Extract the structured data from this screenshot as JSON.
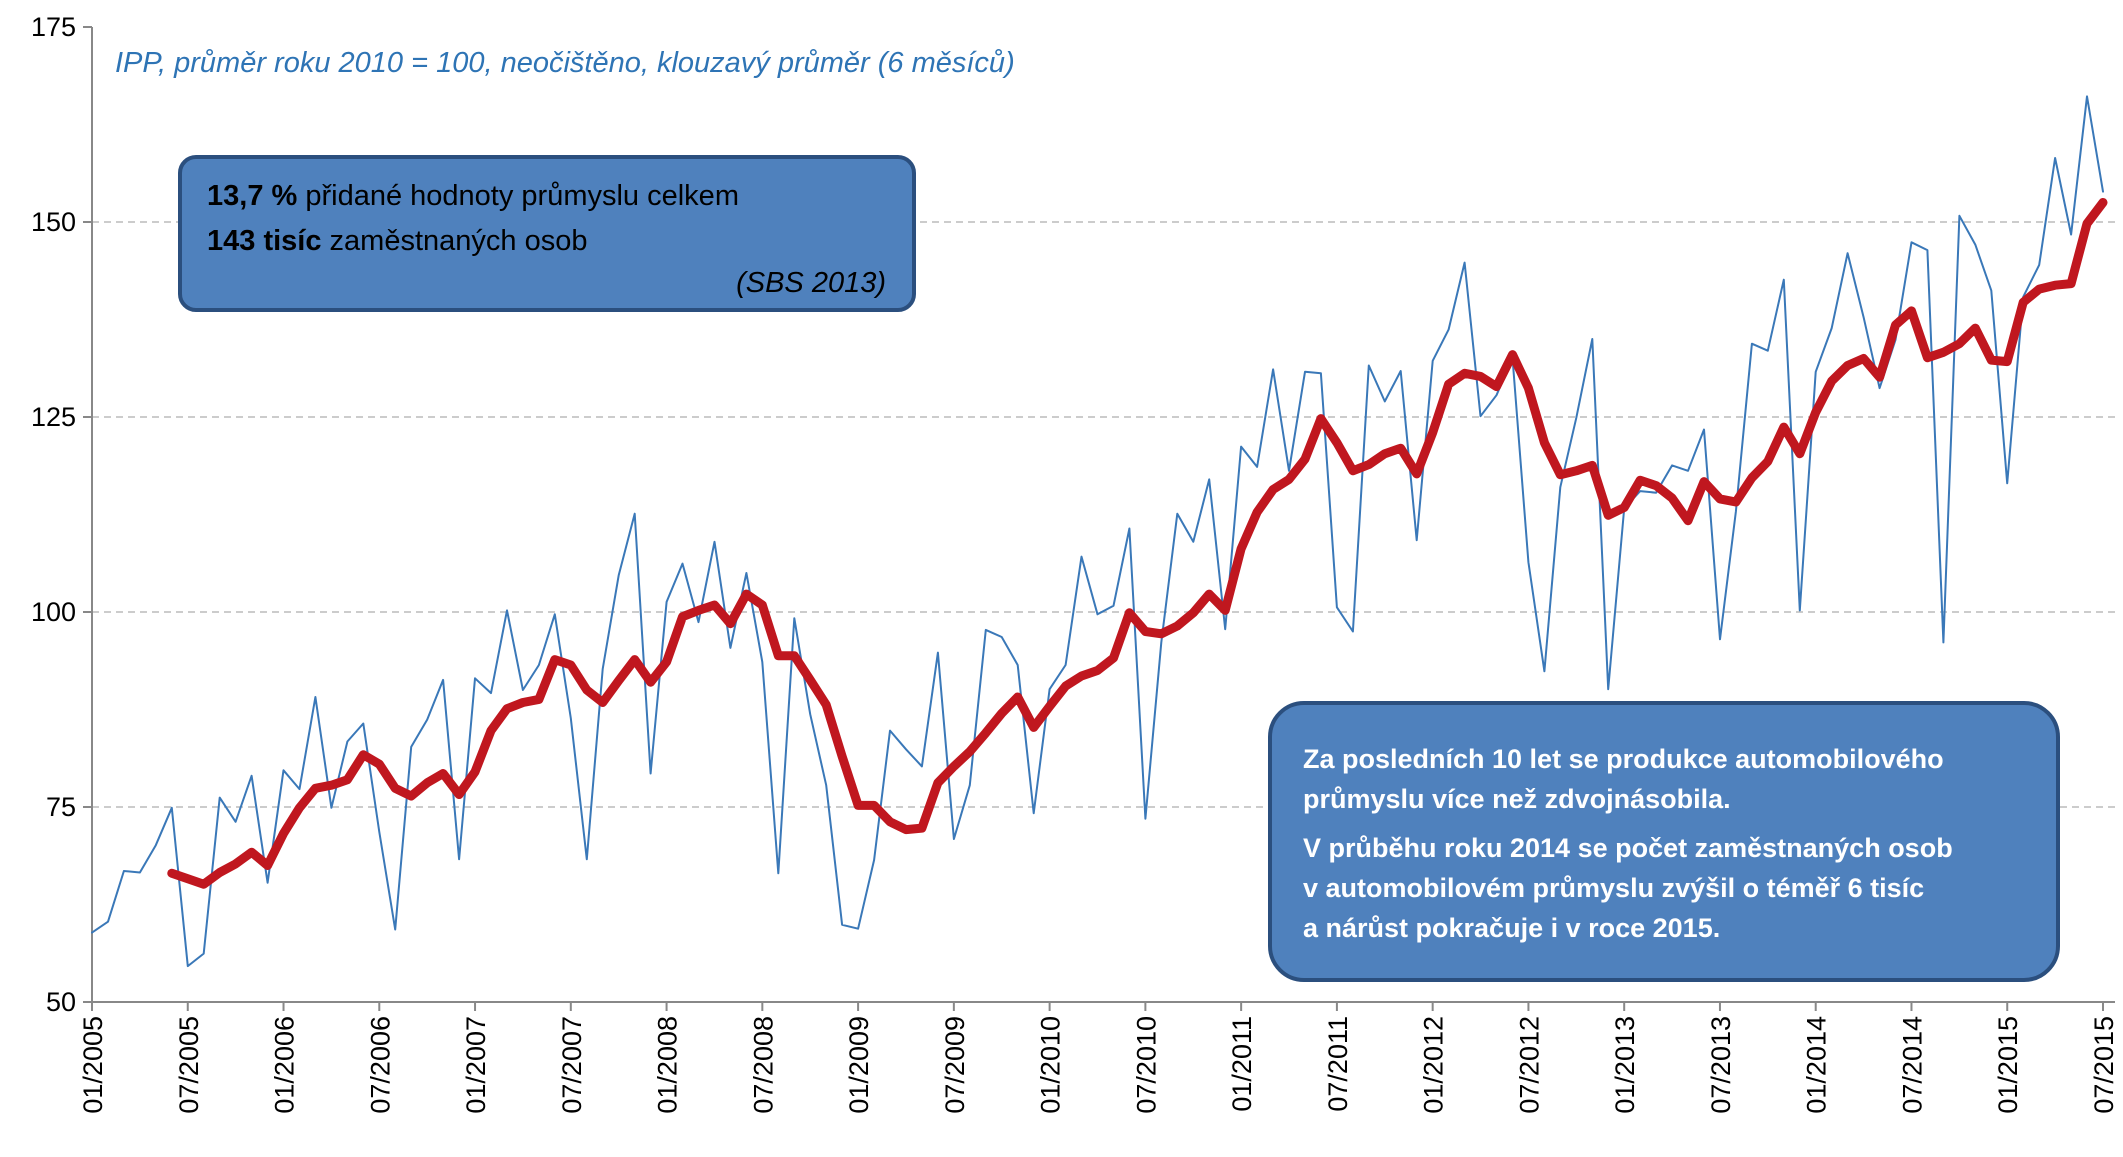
{
  "chart_data": {
    "type": "line",
    "subtitle": "IPP, průměr roku 2010 = 100, neočištěno, klouzavý průměr (6 měsíců)",
    "categories": [
      "01/2005",
      null,
      null,
      null,
      null,
      null,
      "07/2005",
      null,
      null,
      null,
      null,
      null,
      "01/2006",
      null,
      null,
      null,
      null,
      null,
      "07/2006",
      null,
      null,
      null,
      null,
      null,
      "01/2007",
      null,
      null,
      null,
      null,
      null,
      "07/2007",
      null,
      null,
      null,
      null,
      null,
      "01/2008",
      null,
      null,
      null,
      null,
      null,
      "07/2008",
      null,
      null,
      null,
      null,
      null,
      "01/2009",
      null,
      null,
      null,
      null,
      null,
      "07/2009",
      null,
      null,
      null,
      null,
      null,
      "01/2010",
      null,
      null,
      null,
      null,
      null,
      "07/2010",
      null,
      null,
      null,
      null,
      null,
      "01/2011",
      null,
      null,
      null,
      null,
      null,
      "07/2011",
      null,
      null,
      null,
      null,
      null,
      "01/2012",
      null,
      null,
      null,
      null,
      null,
      "07/2012",
      null,
      null,
      null,
      null,
      null,
      "01/2013",
      null,
      null,
      null,
      null,
      null,
      "07/2013",
      null,
      null,
      null,
      null,
      null,
      "01/2014",
      null,
      null,
      null,
      null,
      null,
      "07/2014",
      null,
      null,
      null,
      null,
      null,
      "01/2015",
      null,
      null,
      null,
      null,
      null,
      "07/2015"
    ],
    "series": [
      {
        "color": "#3a78b8",
        "values": [
          58.9,
          60.3,
          66.8,
          66.6,
          70.1,
          74.9,
          54.6,
          56.2,
          76.2,
          73.1,
          79,
          65.3,
          79.7,
          77.3,
          89.1,
          74.9,
          83.4,
          85.7,
          71.8,
          59.3,
          82.7,
          86.2,
          91.3,
          68.3,
          91.5,
          89.6,
          100.2,
          90,
          93.2,
          99.7,
          86.4,
          68.3,
          92.7,
          104.7,
          112.6,
          79.3,
          101.3,
          106.2,
          98.7,
          109,
          95.4,
          105,
          93.6,
          66.5,
          99.2,
          86.9,
          77.8,
          59.9,
          59.4,
          68.2,
          84.8,
          82.4,
          80.2,
          94.8,
          70.9,
          77.8,
          97.7,
          96.8,
          93.2,
          74.2,
          90.1,
          93.2,
          107.1,
          99.7,
          100.8,
          110.7,
          73.5,
          96.1,
          112.6,
          109,
          117,
          97.8,
          121.2,
          118.6,
          131.1,
          118.1,
          130.8,
          130.6,
          100.6,
          97.5,
          131.6,
          127,
          130.9,
          109.2,
          132.2,
          136.2,
          144.8,
          125.1,
          127.8,
          132.6,
          106.4,
          92.4,
          116,
          124.9,
          135,
          90.1,
          113.3,
          115.5,
          115.3,
          118.8,
          118.1,
          123.4,
          96.5,
          112.9,
          134.4,
          133.5,
          142.6,
          100.2,
          130.8,
          136.4,
          146,
          137.8,
          128.7,
          134.9,
          147.4,
          146.4,
          96.1,
          150.8,
          147.1,
          141.2,
          116.5,
          140.4,
          144.5,
          158.2,
          148.4,
          166.1,
          153.9
        ]
      },
      {
        "color": "#c0171f",
        "values": [
          null,
          null,
          null,
          null,
          null,
          66.5,
          65.8,
          65.1,
          66.6,
          67.7,
          69.2,
          67.5,
          71.6,
          74.9,
          77.4,
          77.8,
          78.5,
          81.7,
          80.5,
          77.4,
          76.4,
          78.1,
          79.3,
          76.6,
          79.5,
          84.8,
          87.6,
          88.4,
          88.8,
          93.9,
          93.2,
          90,
          88.4,
          91.2,
          93.9,
          91,
          93.6,
          99.4,
          100.2,
          100.9,
          98.5,
          102.3,
          100.9,
          94.4,
          94.4,
          91.3,
          88.1,
          81.5,
          75.2,
          75.2,
          73.1,
          72.1,
          72.3,
          78.1,
          80.2,
          82.1,
          84.5,
          87,
          89.1,
          85.2,
          87.9,
          90.5,
          91.8,
          92.5,
          94.1,
          99.9,
          97.5,
          97.2,
          98.2,
          99.9,
          102.3,
          100.2,
          108.1,
          112.8,
          115.7,
          117,
          119.6,
          124.8,
          121.7,
          118.1,
          118.9,
          120.3,
          121,
          117.7,
          123,
          129.2,
          130.6,
          130.2,
          128.9,
          133,
          128.7,
          121.7,
          117.6,
          118.1,
          118.8,
          112.4,
          113.4,
          116.9,
          116.2,
          114.6,
          111.7,
          116.7,
          114.5,
          114.1,
          117.2,
          119.3,
          123.7,
          120.3,
          125.6,
          129.6,
          131.6,
          132.5,
          130.1,
          136.8,
          138.6,
          132.6,
          133.3,
          134.4,
          136.4,
          132.3,
          132.1,
          139.7,
          141.4,
          141.9,
          142.1,
          149.8,
          152.5
        ]
      }
    ],
    "ylim": [
      50,
      175
    ],
    "yticks": [
      50,
      75,
      100,
      125,
      150,
      175
    ],
    "grid": true,
    "box1": {
      "lines": [
        {
          "bold": "13,7 %",
          "text": "přidané hodnoty průmyslu celkem"
        },
        {
          "bold": "143 tisíc",
          "text": "zaměstnaných osob"
        }
      ],
      "source": "(SBS 2013)"
    },
    "box2": {
      "lines": [
        "Za posledních 10 let se produkce automobilového",
        "průmyslu více než zdvojnásobila.",
        "V průběhu roku 2014 se počet zaměstnaných osob",
        "v automobilovém průmyslu zvýšil o téměř 6 tisíc",
        "a nárůst pokračuje i v roce 2015."
      ]
    }
  }
}
